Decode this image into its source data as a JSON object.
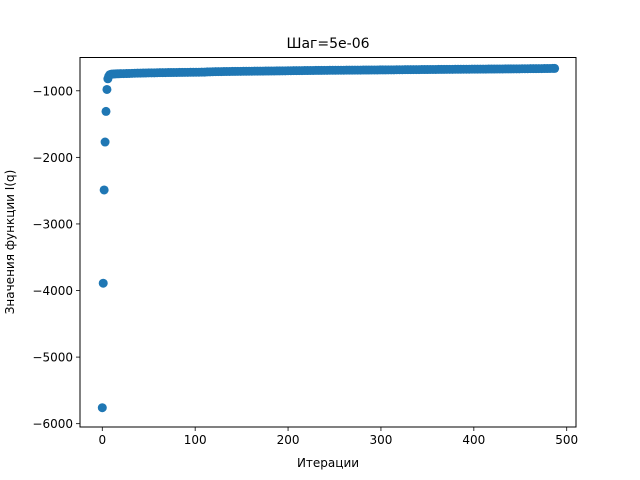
{
  "chart_data": {
    "type": "scatter",
    "title": "Шаг=5e-06",
    "xlabel": "Итерации",
    "ylabel": "Значения функции I(q)",
    "xlim": [
      -24,
      510
    ],
    "ylim": [
      -6050,
      -500
    ],
    "xticks": [
      0,
      100,
      200,
      300,
      400,
      500
    ],
    "yticks": [
      -6000,
      -5000,
      -4000,
      -3000,
      -2000,
      -1000
    ],
    "xtick_labels": [
      "0",
      "100",
      "200",
      "300",
      "400",
      "500"
    ],
    "ytick_labels": [
      "−6000",
      "−5000",
      "−4000",
      "−3000",
      "−2000",
      "−1000"
    ],
    "grid": false,
    "legend": "none",
    "marker_color": "#1f77b4",
    "series": [
      {
        "x": [
          0,
          1,
          2,
          3,
          4,
          5,
          6,
          7,
          8,
          9,
          10,
          12,
          14,
          16,
          18,
          20,
          23,
          26,
          29,
          32,
          35,
          38,
          41,
          44,
          47,
          50,
          53,
          56,
          59,
          62,
          65,
          68,
          71,
          74,
          77,
          80,
          83,
          86,
          89,
          92,
          95,
          98,
          101,
          104,
          107,
          110,
          113,
          116,
          119,
          122,
          125,
          128,
          131,
          134,
          137,
          140,
          143,
          146,
          149,
          152,
          155,
          158,
          161,
          164,
          167,
          170,
          173,
          176,
          179,
          182,
          185,
          188,
          191,
          194,
          197,
          200,
          203,
          206,
          209,
          212,
          215,
          218,
          221,
          224,
          227,
          230,
          233,
          236,
          239,
          242,
          245,
          248,
          251,
          254,
          257,
          260,
          263,
          266,
          269,
          272,
          275,
          278,
          281,
          284,
          287,
          290,
          293,
          296,
          299,
          302,
          305,
          308,
          311,
          314,
          317,
          320,
          323,
          326,
          329,
          332,
          335,
          338,
          341,
          344,
          347,
          350,
          353,
          356,
          359,
          362,
          365,
          368,
          371,
          374,
          377,
          380,
          383,
          386,
          389,
          392,
          395,
          398,
          401,
          404,
          407,
          410,
          413,
          416,
          419,
          422,
          425,
          428,
          431,
          434,
          437,
          440,
          443,
          446,
          449,
          452,
          455,
          458,
          461,
          464,
          467,
          470,
          473,
          476,
          479,
          482,
          485,
          487
        ],
        "y": [
          -5760,
          -3890,
          -2490,
          -1770,
          -1310,
          -980,
          -820,
          -780,
          -760,
          -755,
          -750,
          -748,
          -746,
          -745,
          -744,
          -743,
          -742,
          -741,
          -740,
          -738,
          -736,
          -735,
          -734,
          -733,
          -732,
          -731,
          -731,
          -730,
          -729,
          -728,
          -728,
          -727,
          -726,
          -726,
          -725,
          -725,
          -724,
          -724,
          -723,
          -723,
          -722,
          -722,
          -721,
          -721,
          -720,
          -720,
          -716,
          -715,
          -714,
          -713,
          -712,
          -712,
          -711,
          -710,
          -710,
          -709,
          -709,
          -708,
          -708,
          -707,
          -707,
          -706,
          -706,
          -705,
          -705,
          -704,
          -704,
          -703,
          -703,
          -702,
          -702,
          -701,
          -701,
          -700,
          -700,
          -699,
          -699,
          -698,
          -698,
          -697,
          -697,
          -696,
          -696,
          -695,
          -695,
          -694,
          -694,
          -694,
          -693,
          -693,
          -692,
          -692,
          -692,
          -691,
          -691,
          -691,
          -690,
          -690,
          -690,
          -689,
          -689,
          -689,
          -688,
          -688,
          -688,
          -687,
          -687,
          -687,
          -686,
          -686,
          -686,
          -685,
          -685,
          -685,
          -684,
          -684,
          -684,
          -683,
          -683,
          -683,
          -682,
          -682,
          -682,
          -681,
          -681,
          -681,
          -680,
          -680,
          -680,
          -679,
          -679,
          -679,
          -678,
          -678,
          -678,
          -677,
          -677,
          -677,
          -676,
          -676,
          -676,
          -675,
          -675,
          -675,
          -674,
          -674,
          -674,
          -673,
          -673,
          -673,
          -672,
          -672,
          -672,
          -671,
          -671,
          -671,
          -670,
          -670,
          -670,
          -669,
          -669,
          -669,
          -668,
          -668,
          -668,
          -667,
          -667,
          -666,
          -666,
          -665,
          -664,
          -664
        ]
      }
    ]
  }
}
